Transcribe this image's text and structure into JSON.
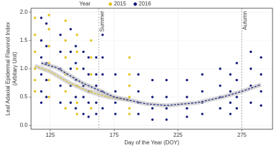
{
  "chart_data": {
    "type": "scatter",
    "xlabel": "Day of the Year (DOY)",
    "ylabel": [
      "Leaf Adaxial Epidermal Flavonol Index",
      "(Arbitary Unit)"
    ],
    "legend_title": "Year",
    "legend_position": "top",
    "grid": true,
    "xlim": [
      110,
      299
    ],
    "ylim": [
      -0.07,
      2.07
    ],
    "xticks": [
      125,
      175,
      225,
      275
    ],
    "yticks": [
      {
        "value": 0,
        "label": "0.0"
      },
      0.5,
      {
        "value": 1,
        "label": "1.0"
      },
      1.5,
      {
        "value": 2,
        "label": "2.0"
      }
    ],
    "annotations": [
      {
        "label": "Summer",
        "x": 163
      },
      {
        "label": "Autumn",
        "x": 275
      }
    ],
    "series": [
      {
        "name": "2015",
        "color": "#e3c21a",
        "x": [
          113,
          113,
          113,
          113,
          113,
          113,
          124,
          124,
          124,
          124,
          124,
          124,
          137,
          137,
          137,
          137,
          137,
          137,
          146,
          146,
          146,
          146,
          146,
          146,
          157,
          157,
          157,
          157,
          157,
          187,
          187,
          187,
          187,
          187,
          187
        ],
        "y": [
          1.9,
          1.6,
          1.3,
          1.0,
          0.8,
          0.6,
          1.95,
          1.7,
          1.4,
          1.1,
          0.8,
          0.5,
          1.85,
          1.5,
          1.2,
          0.9,
          0.6,
          0.3,
          1.6,
          1.3,
          1.0,
          0.7,
          0.4,
          0.2,
          1.5,
          1.2,
          0.9,
          0.6,
          0.3,
          1.2,
          0.9,
          0.7,
          0.5,
          0.3,
          0.2
        ]
      },
      {
        "name": "2016",
        "color": "#141a7c",
        "x": [
          118,
          118,
          118,
          118,
          118,
          118,
          122,
          122,
          122,
          122,
          122,
          133,
          133,
          133,
          133,
          133,
          141,
          141,
          141,
          141,
          141,
          145,
          145,
          145,
          145,
          145,
          151,
          151,
          151,
          151,
          151,
          155,
          155,
          155,
          155,
          155,
          161,
          161,
          161,
          161,
          161,
          166,
          166,
          166,
          166,
          166,
          176,
          176,
          176,
          176,
          194,
          194,
          194,
          194,
          205,
          205,
          205,
          205,
          216,
          216,
          216,
          216,
          232,
          232,
          232,
          232,
          244,
          244,
          244,
          244,
          258,
          258,
          258,
          258,
          266,
          266,
          266,
          266,
          271,
          271,
          271,
          271,
          282,
          282,
          282,
          282,
          290,
          290,
          290,
          290
        ],
        "y": [
          1.9,
          1.5,
          1.2,
          0.9,
          0.6,
          0.4,
          1.8,
          1.4,
          1.1,
          0.8,
          0.5,
          1.6,
          1.3,
          1.0,
          0.7,
          0.4,
          1.7,
          1.3,
          1.0,
          0.7,
          0.4,
          1.4,
          1.1,
          0.8,
          0.5,
          0.3,
          1.3,
          1.0,
          0.7,
          0.5,
          0.2,
          1.2,
          0.9,
          0.6,
          0.4,
          0.15,
          1.2,
          0.9,
          0.7,
          0.4,
          0.2,
          1.6,
          1.2,
          0.9,
          0.6,
          0.3,
          0.9,
          0.6,
          0.4,
          0.2,
          0.9,
          0.6,
          0.4,
          0.2,
          0.8,
          0.5,
          0.3,
          0.1,
          0.8,
          0.5,
          0.3,
          0.1,
          0.8,
          0.5,
          0.3,
          0.15,
          0.9,
          0.6,
          0.4,
          0.2,
          1.0,
          0.7,
          0.5,
          0.3,
          0.9,
          0.6,
          0.4,
          0.2,
          1.1,
          0.8,
          0.5,
          0.3,
          1.3,
          1.0,
          0.7,
          0.4,
          1.2,
          0.9,
          0.6,
          0.35
        ]
      }
    ],
    "trends": [
      {
        "color": "#e3c21a",
        "x": [
          113,
          125,
          140,
          155,
          170,
          187
        ],
        "y": [
          1.05,
          0.95,
          0.75,
          0.6,
          0.5,
          0.45
        ]
      },
      {
        "color": "#141a7c",
        "x": [
          118,
          130,
          150,
          175,
          200,
          216,
          240,
          260,
          275,
          290
        ],
        "y": [
          1.1,
          1.02,
          0.75,
          0.5,
          0.38,
          0.35,
          0.4,
          0.5,
          0.6,
          0.72
        ]
      }
    ]
  }
}
